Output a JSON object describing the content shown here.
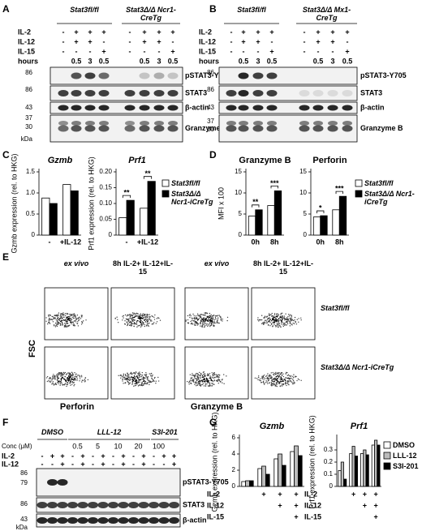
{
  "panels": [
    "A",
    "B",
    "C",
    "D",
    "E",
    "F",
    "G"
  ],
  "blots": [
    {
      "headers": [
        "Stat3fl/fl",
        "Stat3Δ/Δ Ncr1-CreTg"
      ],
      "rows": [
        {
          "label": "IL-2",
          "signs": [
            "-",
            "+",
            "+",
            "+",
            "-",
            "+",
            "+",
            "+"
          ]
        },
        {
          "label": "IL-12",
          "signs": [
            "-",
            "+",
            "+",
            "-",
            "-",
            "+",
            "+",
            "-"
          ]
        },
        {
          "label": "IL-15",
          "signs": [
            "-",
            "-",
            "-",
            "+",
            "-",
            "-",
            "-",
            "+"
          ]
        },
        {
          "label": "hours",
          "signs": [
            null,
            0.5,
            3,
            0.5,
            null,
            0.5,
            3,
            0.5
          ]
        }
      ],
      "bands": [
        "pSTAT3-Y705",
        "STAT3",
        "β-actin",
        "Granzyme B"
      ],
      "markers": [
        86,
        86,
        43,
        37,
        30,
        "kDa"
      ]
    },
    {
      "headers": [
        "Stat3fl/fl",
        "Stat3Δ/Δ Mx1-CreTg"
      ],
      "rows": [
        {
          "label": "IL-2",
          "signs": [
            "-",
            "+",
            "+",
            "+",
            "-",
            "+",
            "+",
            "+"
          ]
        },
        {
          "label": "IL-12",
          "signs": [
            "-",
            "+",
            "+",
            "-",
            "-",
            "+",
            "+",
            "-"
          ]
        },
        {
          "label": "IL-15",
          "signs": [
            "-",
            "-",
            "-",
            "+",
            "-",
            "-",
            "-",
            "+"
          ]
        },
        {
          "label": "hours",
          "signs": [
            null,
            0.5,
            3,
            0.5,
            null,
            0.5,
            3,
            0.5
          ]
        }
      ],
      "bands": [
        "pSTAT3-Y705",
        "STAT3",
        "β-actin",
        "Granzyme B"
      ],
      "markers": [
        86,
        86,
        43,
        37,
        30
      ]
    },
    {
      "headers": [
        "DMSO",
        "LLL-12",
        "S3I-201"
      ],
      "conc_label": "Conc (μM)",
      "conc": [
        null,
        null,
        null,
        0.5,
        null,
        5,
        null,
        10,
        null,
        20,
        null,
        100,
        null,
        null
      ],
      "rows": [
        {
          "label": "IL-2",
          "signs": [
            "-",
            "+",
            "+",
            "-",
            "+",
            "-",
            "+",
            "-",
            "+",
            "-",
            "+",
            "-",
            "+",
            "+"
          ]
        },
        {
          "label": "IL-12",
          "signs": [
            "-",
            "-",
            "+",
            "-",
            "+",
            "-",
            "+",
            "-",
            "+",
            "-",
            "+",
            "-",
            "-",
            "+"
          ]
        }
      ],
      "bands": [
        "pSTAT3-Y705",
        "STAT3",
        "β-actin"
      ],
      "markers": [
        86,
        79,
        86,
        43,
        "kDa"
      ]
    }
  ],
  "flow": {
    "columns": [
      "ex vivo",
      "8h IL-2+ IL-12+IL-15",
      "ex vivo",
      "8h IL-2+ IL-12+IL-15"
    ],
    "rows": [
      "Stat3fl/fl",
      "Stat3Δ/Δ Ncr1-iCreTg"
    ],
    "ylabel": "FSC",
    "xlabels": [
      "Perforin",
      "Granzyme B"
    ]
  },
  "chart_data": [
    {
      "type": "bar",
      "title": "Gzmb",
      "ylabel": "Gzmb expression (rel. to HKG)",
      "categories": [
        "-",
        "+IL-12"
      ],
      "ylim": [
        0,
        1.5
      ],
      "yticks": [
        0,
        0.5,
        {
          "value": 1,
          "label": "1.0"
        },
        1.5
      ],
      "series": [
        {
          "name": "Stat3fl/fl",
          "color": "#ffffff",
          "values": [
            0.88,
            1.2
          ]
        },
        {
          "name": "Stat3Δ/Δ Ncr1-iCreTg",
          "color": "#000000",
          "values": [
            0.75,
            1.05
          ]
        }
      ]
    },
    {
      "type": "bar",
      "title": "Prf1",
      "ylabel": "Prf1 expression (rel. to HKG)",
      "categories": [
        "-",
        "+IL-12"
      ],
      "ylim": [
        0,
        0.2
      ],
      "yticks": [
        0,
        0.05,
        {
          "value": 0.1,
          "label": "0.10"
        },
        0.15,
        {
          "value": 0.2,
          "label": "0.20"
        }
      ],
      "series": [
        {
          "color": "#ffffff",
          "values": [
            0.055,
            0.085
          ]
        },
        {
          "color": "#000000",
          "values": [
            0.11,
            0.17
          ]
        }
      ],
      "significance": [
        "**",
        "**"
      ]
    },
    {
      "type": "bar",
      "title": "Granzyme B",
      "ylabel": "MFI x 100",
      "categories": [
        "0h",
        "8h"
      ],
      "ylim": [
        0,
        15
      ],
      "yticks": [
        0,
        5,
        10,
        15
      ],
      "series": [
        {
          "name": "Stat3fl/fl",
          "color": "#ffffff",
          "values": [
            4.5,
            7
          ]
        },
        {
          "name": "Stat3Δ/Δ Ncr1-iCreTg",
          "color": "#000000",
          "values": [
            6,
            10.5
          ]
        }
      ],
      "significance": [
        "**",
        "***"
      ]
    },
    {
      "type": "bar",
      "title": "Perforin",
      "categories": [
        "0h",
        "8h"
      ],
      "ylim": [
        0,
        15
      ],
      "yticks": [
        0,
        5,
        10,
        15
      ],
      "series": [
        {
          "color": "#ffffff",
          "values": [
            4.3,
            6
          ]
        },
        {
          "color": "#000000",
          "values": [
            4.6,
            9.2
          ]
        }
      ],
      "significance": [
        "*",
        "***"
      ]
    },
    {
      "type": "bar",
      "title": "Gzmb",
      "ylabel": "Gzmb expression (rel. to HKG)",
      "ylim": [
        0,
        6
      ],
      "yticks": [
        0,
        2,
        4,
        6
      ],
      "treatments": [
        {
          "label": "IL-2",
          "signs": [
            null,
            "+",
            "+",
            "+"
          ]
        },
        {
          "label": "IL-12",
          "signs": [
            null,
            null,
            "+",
            "+"
          ]
        },
        {
          "label": "IL-15",
          "signs": [
            null,
            null,
            null,
            "+"
          ]
        }
      ],
      "series": [
        {
          "name": "DMSO",
          "color": "#ffffff",
          "values": [
            0.6,
            2.2,
            3.4,
            4.3
          ]
        },
        {
          "name": "LLL-12",
          "color": "#bbbbbb",
          "values": [
            0.7,
            2.5,
            4.0,
            5.0
          ]
        },
        {
          "name": "S3I-201",
          "color": "#000000",
          "values": [
            0.7,
            1.5,
            2.6,
            3.8
          ]
        }
      ]
    },
    {
      "type": "bar",
      "title": "Prf1",
      "ylabel": "Prf1 expression (rel. to HKG)",
      "ylim": [
        0,
        0.4
      ],
      "yticks": [
        0,
        0.1,
        0.2,
        0.3
      ],
      "treatments": [
        {
          "label": "IL-2",
          "signs": [
            null,
            "+",
            "+",
            "+"
          ]
        },
        {
          "label": "IL-12",
          "signs": [
            null,
            null,
            "+",
            "+"
          ]
        },
        {
          "label": "IL-15",
          "signs": [
            null,
            null,
            null,
            "+"
          ]
        }
      ],
      "series": [
        {
          "color": "#ffffff",
          "values": [
            0.13,
            0.27,
            0.27,
            0.34
          ]
        },
        {
          "color": "#bbbbbb",
          "values": [
            0.2,
            0.33,
            0.3,
            0.38
          ]
        },
        {
          "color": "#000000",
          "values": [
            0.06,
            0.25,
            0.26,
            0.34
          ]
        }
      ]
    }
  ]
}
